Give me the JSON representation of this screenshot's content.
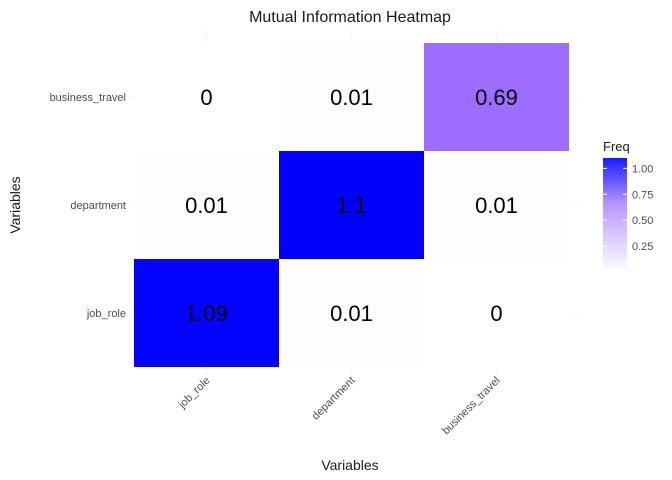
{
  "chart_data": {
    "type": "heatmap",
    "title": "Mutual Information Heatmap",
    "xlabel": "Variables",
    "ylabel": "Variables",
    "x_categories": [
      "job_role",
      "department",
      "business_travel"
    ],
    "y_categories": [
      "job_role",
      "department",
      "business_travel"
    ],
    "cells": [
      {
        "x": "job_role",
        "y": "job_role",
        "value": 1.09,
        "label": "1.09"
      },
      {
        "x": "department",
        "y": "job_role",
        "value": 0.01,
        "label": "0.01"
      },
      {
        "x": "business_travel",
        "y": "job_role",
        "value": 0,
        "label": "0"
      },
      {
        "x": "job_role",
        "y": "department",
        "value": 0.01,
        "label": "0.01"
      },
      {
        "x": "department",
        "y": "department",
        "value": 1.1,
        "label": "1.1"
      },
      {
        "x": "business_travel",
        "y": "department",
        "value": 0.01,
        "label": "0.01"
      },
      {
        "x": "job_role",
        "y": "business_travel",
        "value": 0,
        "label": "0"
      },
      {
        "x": "department",
        "y": "business_travel",
        "value": 0.01,
        "label": "0.01"
      },
      {
        "x": "business_travel",
        "y": "business_travel",
        "value": 0.69,
        "label": "0.69"
      }
    ],
    "legend": {
      "title": "Freq",
      "placement": "right",
      "ticks": [
        0.25,
        0.5,
        0.75,
        1.0
      ],
      "tick_labels": [
        "0.25",
        "0.50",
        "0.75",
        "1.00"
      ],
      "range": [
        0,
        1.1
      ],
      "low_color": "#ffffff",
      "high_color": "#0000ff",
      "mid_color": "#9d6cff"
    },
    "grid": true
  }
}
